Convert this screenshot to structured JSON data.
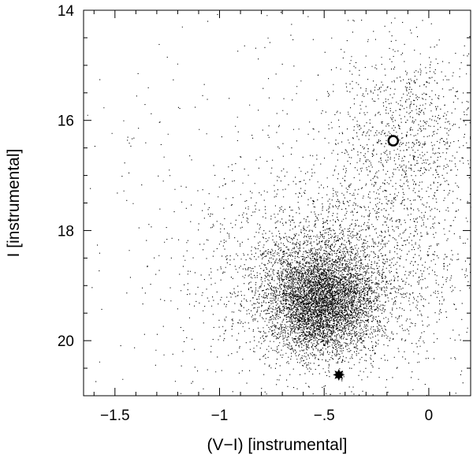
{
  "chart_data": {
    "type": "scatter",
    "title": "",
    "xlabel": "(V−I) [instrumental]",
    "ylabel": "I [instrumental]",
    "xlim": [
      -1.65,
      0.2
    ],
    "ylim": [
      21.0,
      14.0
    ],
    "y_inverted": true,
    "x_tick_labels": [
      {
        "value": -1.5,
        "label": "−1.5"
      },
      {
        "value": -1.0,
        "label": "−1"
      },
      {
        "value": -0.5,
        "label": "−.5"
      },
      {
        "value": 0.0,
        "label": "0"
      }
    ],
    "y_tick_labels": [
      {
        "value": 14,
        "label": "14"
      },
      {
        "value": 16,
        "label": "16"
      },
      {
        "value": 18,
        "label": "18"
      },
      {
        "value": 20,
        "label": "20"
      }
    ],
    "x_minor_step": 0.1,
    "y_minor_step": 0.5,
    "grid": false,
    "point_color": "#000000",
    "point_cloud": {
      "description_components": [
        {
          "role": "dense main clump",
          "center": [
            -0.52,
            19.25
          ],
          "spread": [
            0.13,
            0.48
          ],
          "share": 0.55
        },
        {
          "role": "broad envelope",
          "center": [
            -0.45,
            18.8
          ],
          "spread": [
            0.3,
            0.9
          ],
          "share": 0.27
        },
        {
          "role": "upper-right plume",
          "center": [
            -0.12,
            16.3
          ],
          "spread": [
            0.18,
            0.9
          ],
          "share": 0.12
        },
        {
          "role": "sparse field",
          "center": [
            -0.7,
            17.5
          ],
          "spread": [
            0.55,
            2.2
          ],
          "share": 0.06
        }
      ],
      "approx_count": 9000
    },
    "special_markers": [
      {
        "name": "open-circle",
        "x": -0.17,
        "y": 16.37
      },
      {
        "name": "filled-star",
        "x": -0.43,
        "y": 20.62
      }
    ]
  }
}
